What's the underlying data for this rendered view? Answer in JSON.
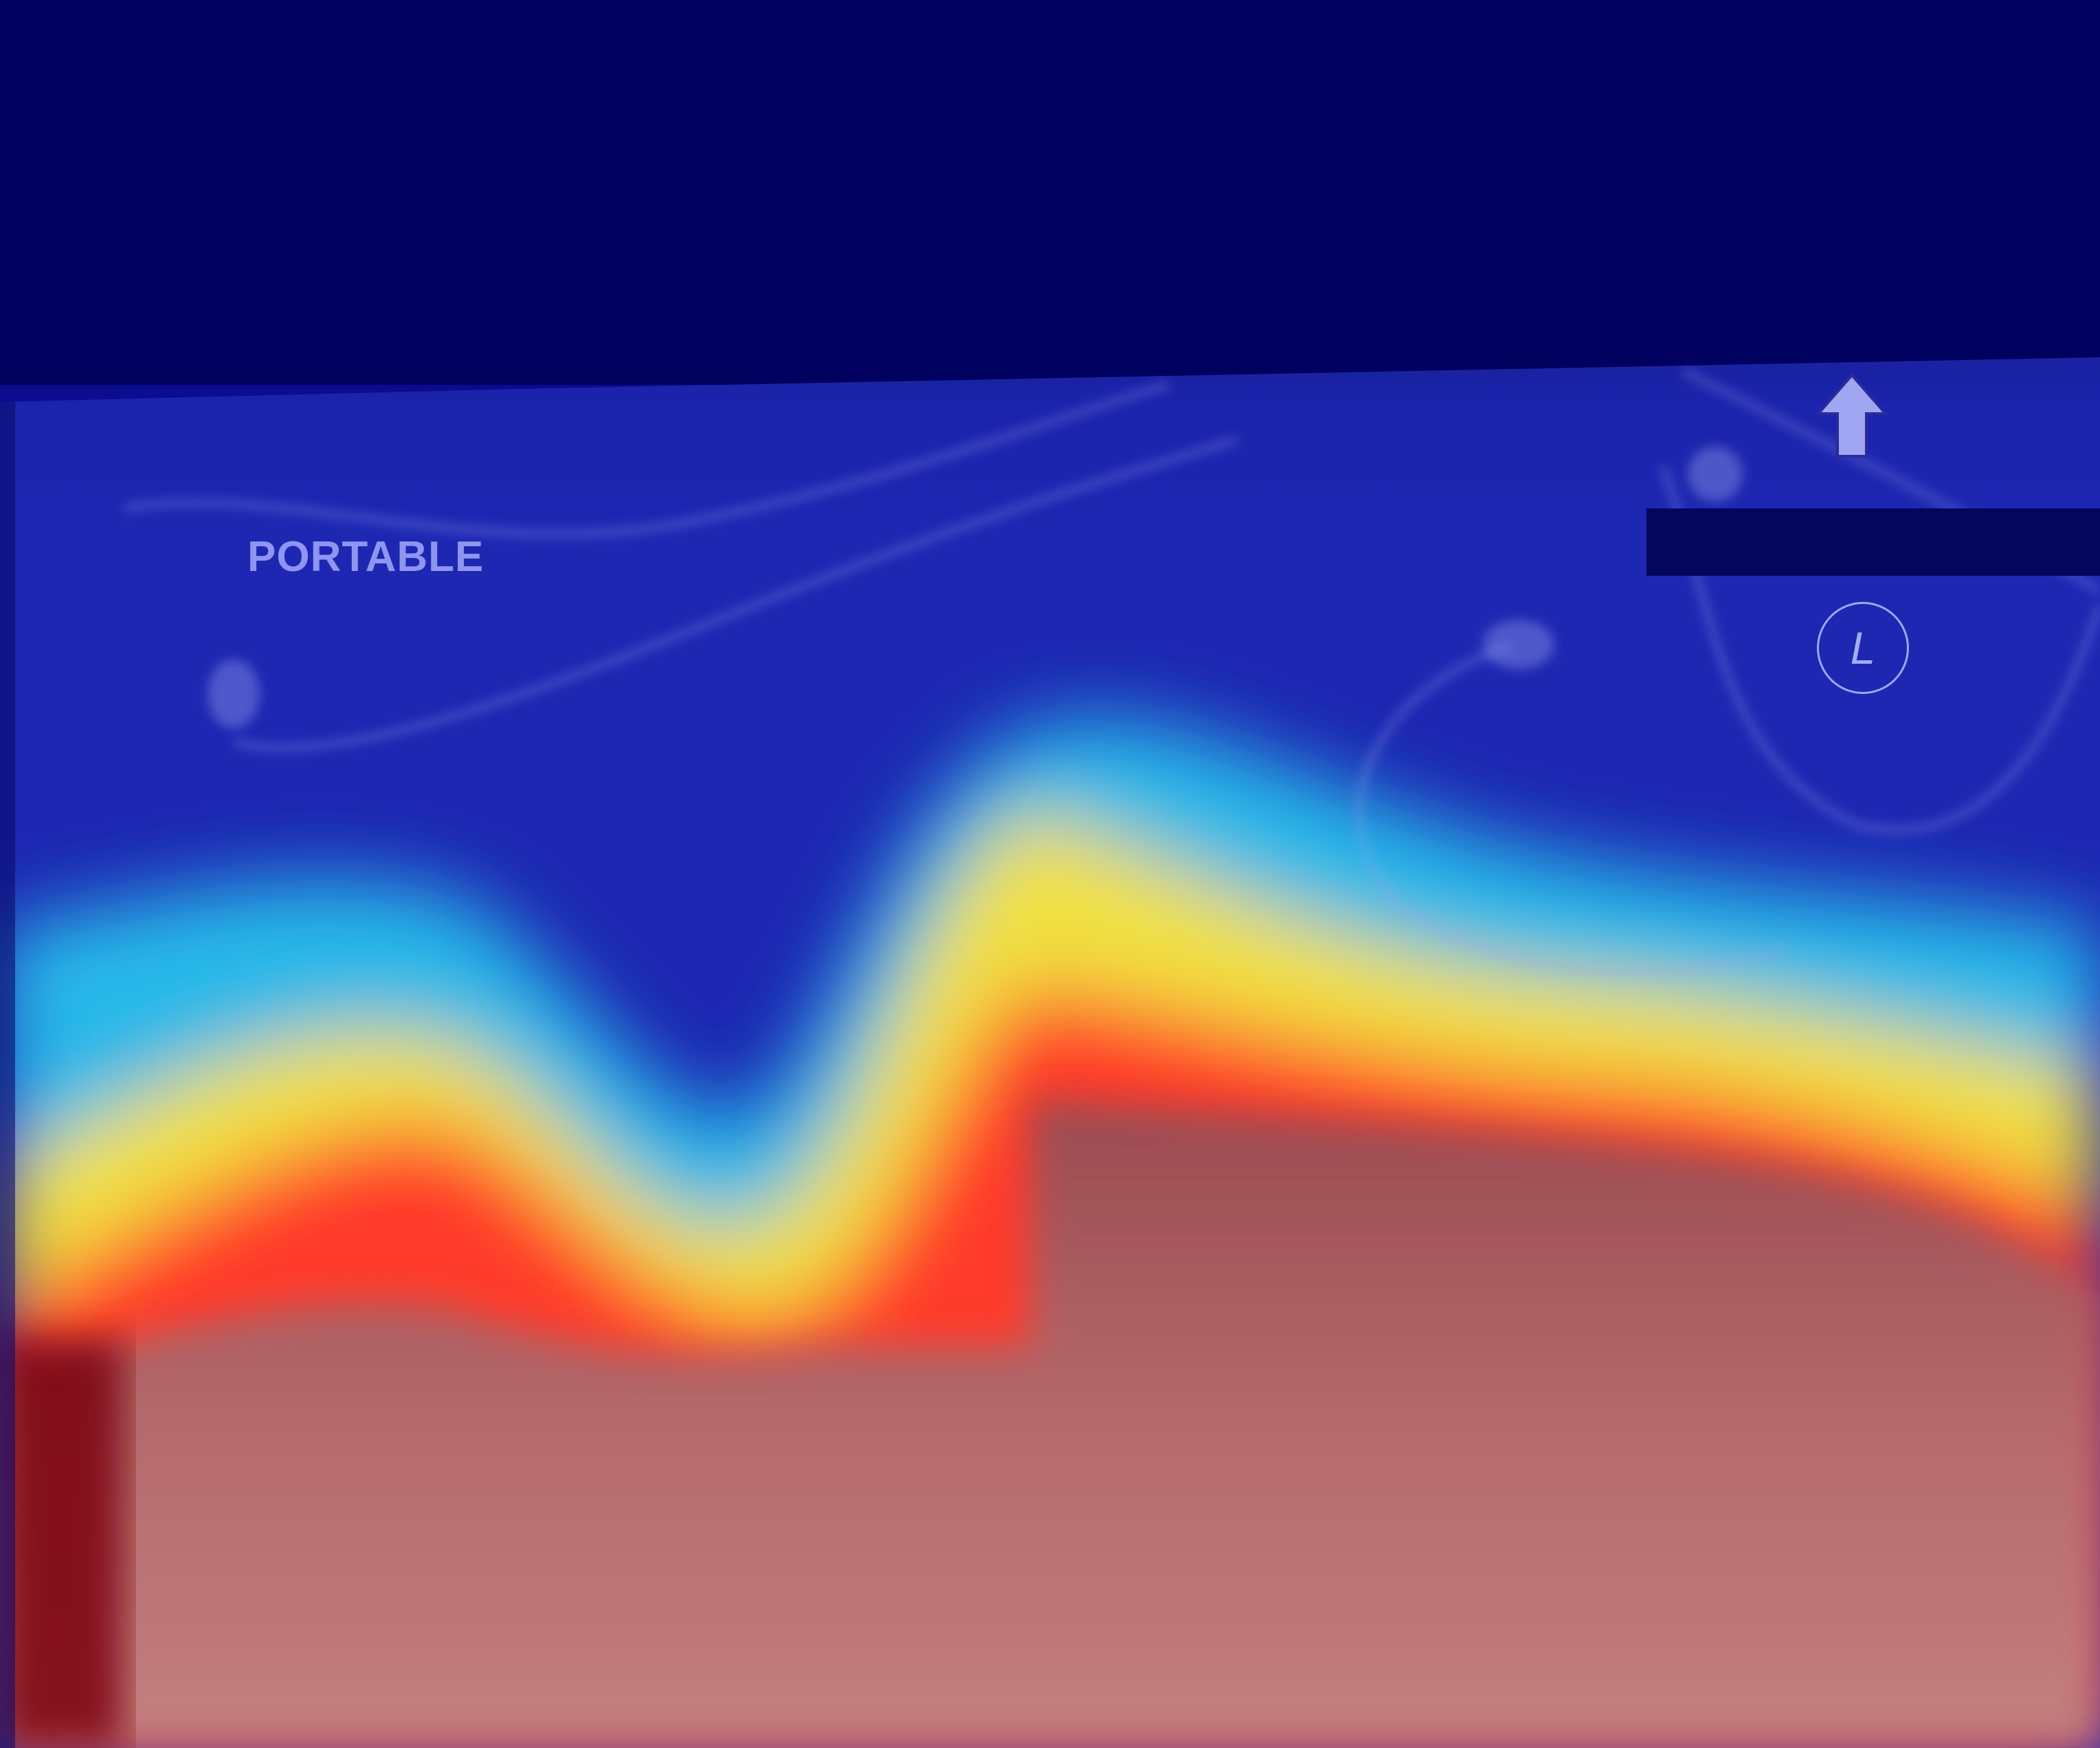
{
  "image": {
    "kind": "portable chest radiograph with heatmap overlay",
    "overlay_colormap": [
      "#00007a",
      "#0000d0",
      "#2aa0ff",
      "#30e0d0",
      "#f0f040",
      "#ff3020",
      "#b06060"
    ]
  },
  "annotations": {
    "projection_label": "PORTABLE",
    "laterality_marker": "L"
  },
  "icons": {
    "orientation": "up-arrow-icon"
  },
  "colors": {
    "background": "#00005a",
    "label_text": "#8f95f0",
    "marker_text": "#a6acf4",
    "redaction": "#05055e"
  }
}
